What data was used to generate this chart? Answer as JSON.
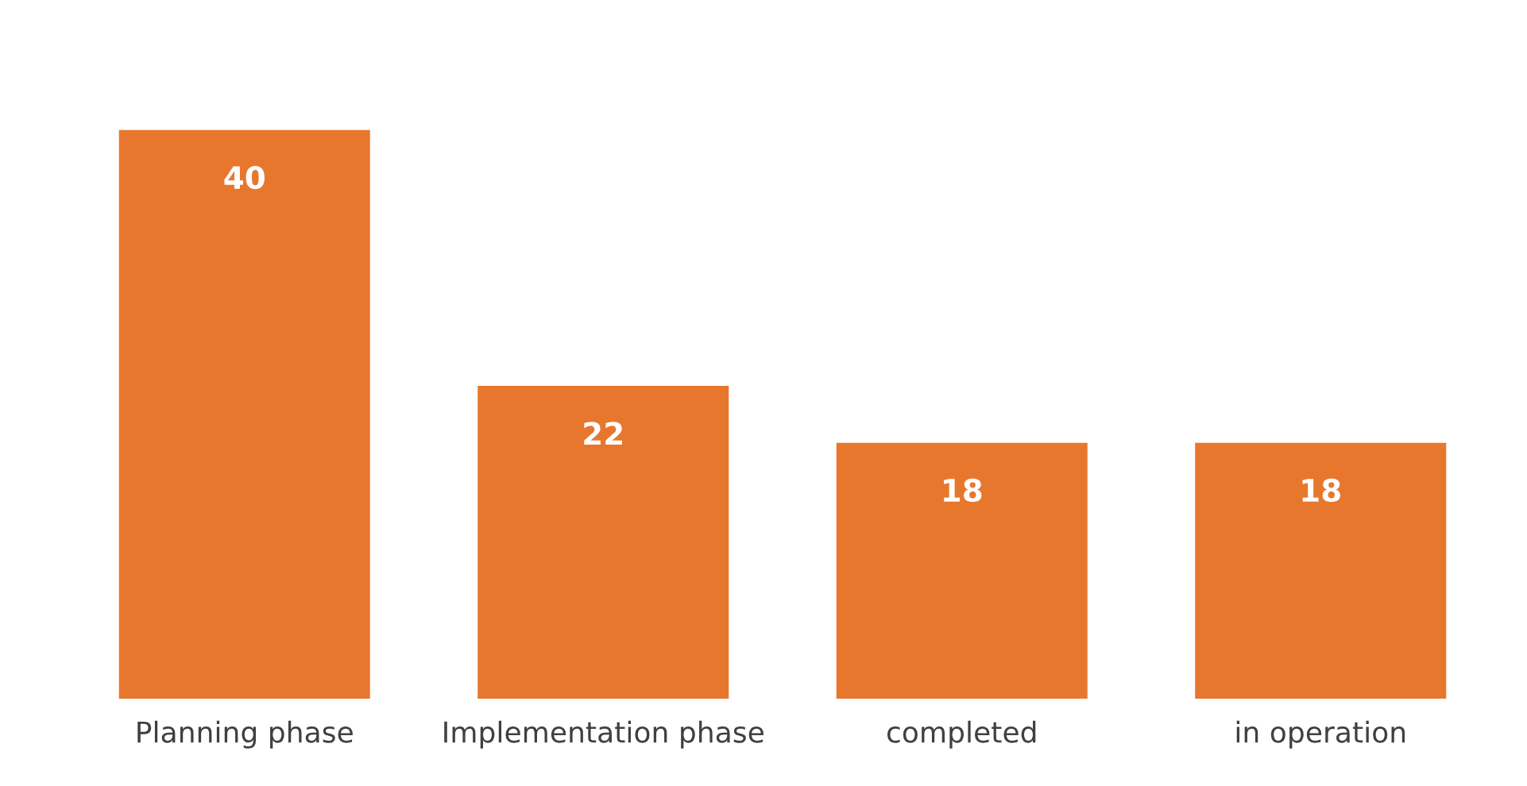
{
  "chart_data": {
    "type": "bar",
    "categories": [
      "Planning phase",
      "Implementation phase",
      "completed",
      "in operation"
    ],
    "values": [
      40,
      22,
      18,
      18
    ],
    "color": "#e8772e",
    "data_labels": true,
    "grid": false,
    "legend": false,
    "tick_labels": "x"
  }
}
